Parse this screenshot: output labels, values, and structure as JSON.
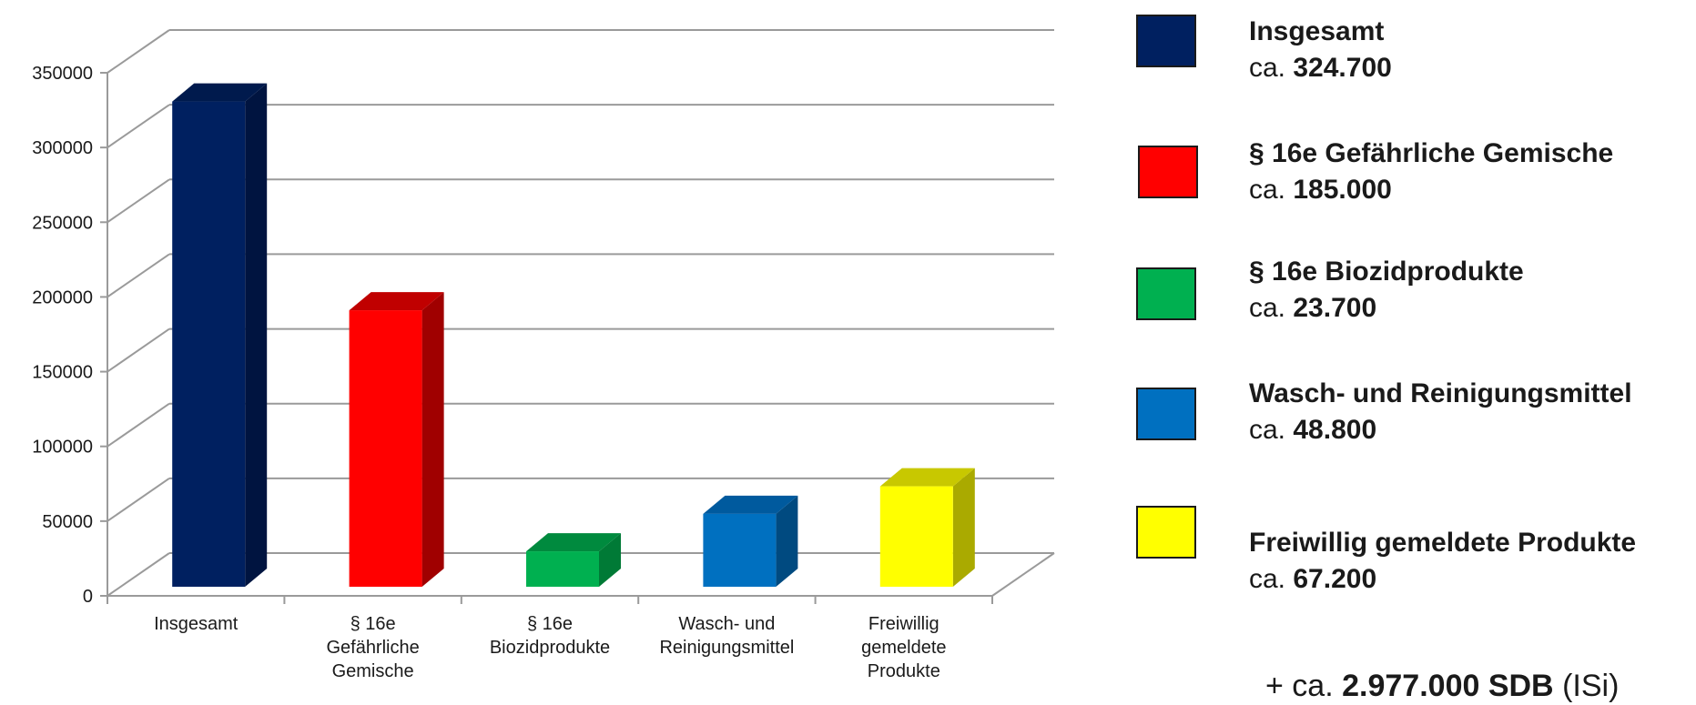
{
  "chart_data": {
    "type": "bar",
    "categories": [
      [
        "Insgesamt"
      ],
      [
        "§ 16e",
        "Gefährliche",
        "Gemische"
      ],
      [
        "§ 16e",
        "Biozidprodukte"
      ],
      [
        "Wasch- und",
        "Reinigungsmittel"
      ],
      [
        "Freiwillig",
        "gemeldete",
        "Produkte"
      ]
    ],
    "values": [
      324700,
      185000,
      23700,
      48800,
      67200
    ],
    "yticks": [
      "0",
      "50000",
      "100000",
      "150000",
      "200000",
      "250000",
      "300000",
      "350000"
    ],
    "ylim": [
      0,
      350000
    ],
    "grid": true,
    "legend_position": "right",
    "colors": [
      {
        "front": "#002060",
        "side": "#001440",
        "top": "#001a4d"
      },
      {
        "front": "#ff0000",
        "side": "#a00000",
        "top": "#c00000"
      },
      {
        "front": "#00b050",
        "side": "#007a36",
        "top": "#008a3e"
      },
      {
        "front": "#0070c0",
        "side": "#004a80",
        "top": "#005a9e"
      },
      {
        "front": "#ffff00",
        "side": "#aaaa00",
        "top": "#c8c800"
      }
    ]
  },
  "legend": [
    {
      "name": "Insgesamt",
      "prefix": "ca.",
      "value": "324.700",
      "color": "#002060"
    },
    {
      "name": "§ 16e Gefährliche Gemische",
      "prefix": "ca.",
      "value": "185.000",
      "color": "#ff0000"
    },
    {
      "name": "§ 16e Biozidprodukte",
      "prefix": "ca.",
      "value": "23.700",
      "color": "#00b050"
    },
    {
      "name": "Wasch- und Reinigungsmittel",
      "prefix": "ca.",
      "value": "48.800",
      "color": "#0070c0"
    },
    {
      "name": "Freiwillig gemeldete Produkte",
      "prefix": "ca.",
      "value": "67.200",
      "color": "#ffff00"
    }
  ],
  "footnote": {
    "prefix": "+ ca.",
    "value": "2.977.000 SDB",
    "suffix": "(ISi)"
  }
}
